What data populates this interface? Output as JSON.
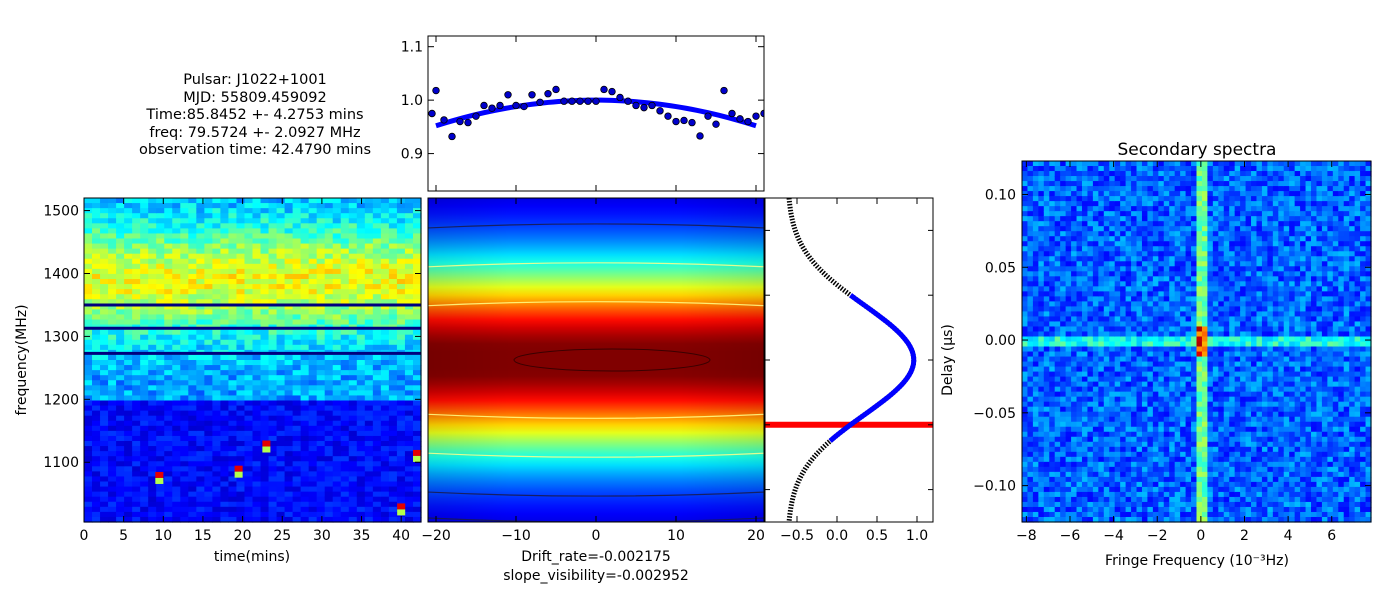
{
  "info": {
    "pulsar": "Pulsar: J1022+1001",
    "mjd": "MJD: 55809.459092",
    "time": "Time:85.8452 +- 4.2753 mins",
    "freq": "freq: 79.5724 +- 2.0927 MHz",
    "obs": "observation time: 42.4790 mins"
  },
  "colors": {
    "jet_low": "#00007f",
    "jet_high": "#7f0000",
    "fit_line": "#0000ff",
    "marker_line": "#ff0000",
    "contour_dark": "#1a1a4a",
    "contour_light": "#ffff88"
  },
  "chart_data": [
    {
      "id": "dynamic_spectrum",
      "type": "heatmap",
      "title": "",
      "xlabel": "time(mins)",
      "ylabel": "frequency(MHz)",
      "xlim": [
        0,
        42.5
      ],
      "ylim": [
        1005,
        1520
      ],
      "xticks": [
        0,
        5,
        10,
        15,
        20,
        25,
        30,
        35,
        40
      ],
      "yticks": [
        1100,
        1200,
        1300,
        1400,
        1500
      ],
      "band_center_mhz": 1390,
      "dark_lines_mhz": [
        1350,
        1313,
        1273
      ],
      "bright_spots": [
        [
          23,
          1125
        ],
        [
          9.5,
          1075
        ],
        [
          19.5,
          1085
        ],
        [
          40,
          1025
        ],
        [
          42,
          1110
        ]
      ]
    },
    {
      "id": "normalized_curve",
      "type": "scatter",
      "title": "",
      "xlim": [
        -21,
        21
      ],
      "ylim": [
        0.83,
        1.12
      ],
      "yticks": [
        0.9,
        1.0,
        1.1
      ],
      "x": [
        -20.5,
        -20,
        -19,
        -18,
        -17,
        -16,
        -15,
        -14,
        -13,
        -12,
        -11,
        -10,
        -9,
        -8,
        -7,
        -6,
        -5,
        -4,
        -3,
        -2,
        -1,
        0,
        1,
        2,
        3,
        4,
        5,
        6,
        7,
        8,
        9,
        10,
        11,
        12,
        13,
        14,
        15,
        16,
        17,
        18,
        19,
        20,
        21
      ],
      "y": [
        0.975,
        1.018,
        0.963,
        0.932,
        0.96,
        0.958,
        0.97,
        0.99,
        0.985,
        0.99,
        1.01,
        0.99,
        0.988,
        1.01,
        0.996,
        1.012,
        1.02,
        0.998,
        0.998,
        0.998,
        0.998,
        0.998,
        1.02,
        1.016,
        1.005,
        0.998,
        0.99,
        0.986,
        0.99,
        0.98,
        0.97,
        0.96,
        0.962,
        0.958,
        0.933,
        0.97,
        0.955,
        1.018,
        0.975,
        0.965,
        0.96,
        0.97,
        0.975
      ],
      "fit": {
        "type": "parabola",
        "vertex_y": 1.0,
        "y_at_edge": 0.952,
        "x_range": [
          -20,
          20
        ]
      }
    },
    {
      "id": "correlation_map",
      "type": "heatmap",
      "title": "",
      "xlabel": "Drift_rate=-0.002175",
      "xlabel2": "slope_visibility=-0.002952",
      "xlim": [
        -21,
        21
      ],
      "xticks": [
        -20,
        -10,
        0,
        10,
        20
      ],
      "peak": [
        2,
        0.0
      ],
      "contour_levels_y": [
        0.42,
        0.3,
        0.18,
        -0.18,
        -0.3,
        -0.42,
        -0.5
      ]
    },
    {
      "id": "frequency_profile",
      "type": "line",
      "title": "",
      "ylabel": "Delay (µs)",
      "xlim": [
        -0.9,
        1.2
      ],
      "xticks": [
        -0.5,
        0.0,
        0.5,
        1.0
      ],
      "xticklabels": [
        "−0.5",
        "0.0",
        "0.5",
        "1.0"
      ],
      "peak_x": 1.0,
      "red_marker_y": -0.2
    },
    {
      "id": "secondary_spectrum",
      "type": "heatmap",
      "title": "Secondary spectra",
      "xlabel": "Fringe Frequency (10⁻³Hz)",
      "ylabel": "",
      "xlim": [
        -8.2,
        7.8
      ],
      "ylim": [
        -0.125,
        0.123
      ],
      "xticks": [
        -8,
        -6,
        -4,
        -2,
        0,
        2,
        4,
        6
      ],
      "xticklabels": [
        "−8",
        "−6",
        "−4",
        "−2",
        "0",
        "2",
        "4",
        "6"
      ],
      "yticks": [
        0.1,
        0.05,
        0.0,
        -0.05,
        -0.1
      ],
      "yticklabels": [
        "0.10",
        "0.05",
        "0.00",
        "−0.05",
        "−0.10"
      ]
    }
  ]
}
